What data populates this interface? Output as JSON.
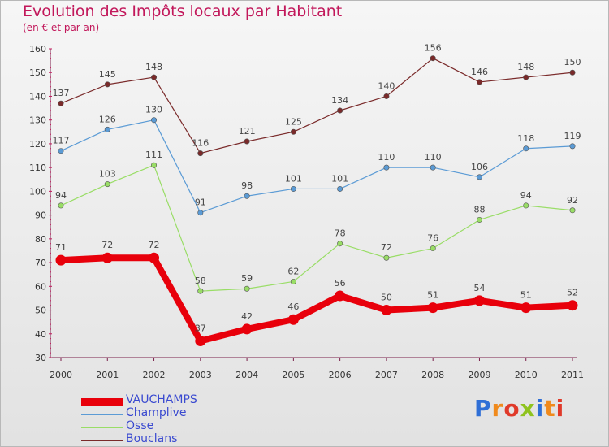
{
  "header": {
    "title": "Evolution des Impôts locaux par Habitant",
    "subtitle": "(en € et par an)"
  },
  "chart_data": {
    "type": "line",
    "title": "Evolution des Impôts locaux par Habitant",
    "subtitle": "(en € et par an)",
    "xlabel": "",
    "ylabel": "",
    "x": [
      "2000",
      "2001",
      "2002",
      "2003",
      "2004",
      "2005",
      "2006",
      "2007",
      "2008",
      "2009",
      "2010",
      "2011"
    ],
    "ylim": [
      30,
      160
    ],
    "yticks": [
      30,
      40,
      50,
      60,
      70,
      80,
      90,
      100,
      110,
      120,
      130,
      140,
      150,
      160
    ],
    "grid": false,
    "legend_position": "bottom-left",
    "series": [
      {
        "name": "VAUCHAMPS",
        "color": "#e8000b",
        "values": [
          71,
          72,
          72,
          37,
          42,
          46,
          56,
          50,
          51,
          54,
          51,
          52
        ]
      },
      {
        "name": "Champlive",
        "color": "#5b9bd5",
        "values": [
          117,
          126,
          130,
          91,
          98,
          101,
          101,
          110,
          110,
          106,
          118,
          119
        ]
      },
      {
        "name": "Osse",
        "color": "#99dd66",
        "values": [
          94,
          103,
          111,
          58,
          59,
          62,
          78,
          72,
          76,
          88,
          94,
          92
        ]
      },
      {
        "name": "Bouclans",
        "color": "#7a2a2a",
        "values": [
          137,
          145,
          148,
          116,
          121,
          125,
          134,
          140,
          156,
          146,
          148,
          150
        ]
      }
    ]
  },
  "logo": {
    "text": "Proxiti",
    "letter_colors": [
      "#2f6fd6",
      "#f08a1c",
      "#e03a2a",
      "#8fc31f",
      "#2f6fd6",
      "#f08a1c",
      "#e03a2a"
    ]
  }
}
